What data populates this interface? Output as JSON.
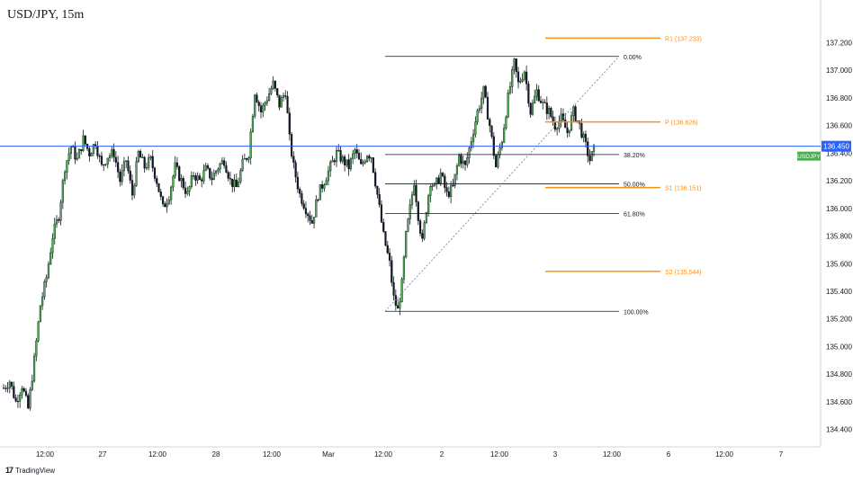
{
  "chart_data": {
    "type": "candlestick",
    "title": "USD/JPY, 15m",
    "brand": "TradingView",
    "brand_mark": "17",
    "symbol_tag": "USDJPY",
    "current_price_label": "136.450",
    "current_price": 136.45,
    "ylim": [
      134.3,
      137.45
    ],
    "y_ticks": [
      "134.400",
      "134.600",
      "134.800",
      "135.000",
      "135.200",
      "135.400",
      "135.600",
      "135.800",
      "136.000",
      "136.200",
      "136.400",
      "136.600",
      "136.800",
      "137.000",
      "137.200"
    ],
    "x_ticks": [
      "12:00",
      "27",
      "12:00",
      "28",
      "12:00",
      "Mar",
      "12:00",
      "2",
      "12:00",
      "3",
      "12:00",
      "6",
      "12:00",
      "7"
    ],
    "colors": {
      "up": "#4caf50",
      "down": "#131722",
      "wick": "#131722",
      "fib": "#131722",
      "pivot": "#f7931a",
      "price_line": "#2962ff",
      "price_label_bg": "#2962ff",
      "symbol_tag_bg": "#4caf50",
      "axis_text": "#131722",
      "pivot_text": "#f7931a"
    },
    "fib_levels": [
      {
        "label": "0.00%",
        "price": 137.1
      },
      {
        "label": "38.20%",
        "price": 136.39
      },
      {
        "label": "50.00%",
        "price": 136.178
      },
      {
        "label": "61.80%",
        "price": 135.962
      },
      {
        "label": "100.00%",
        "price": 135.255
      }
    ],
    "pivot_levels": [
      {
        "label": "R1 (137.233)",
        "price": 137.233
      },
      {
        "label": "P (136.626)",
        "price": 136.626
      },
      {
        "label": "S1 (136.151)",
        "price": 136.151
      },
      {
        "label": "S2 (135.544)",
        "price": 135.544
      }
    ],
    "trendline": {
      "from_price": 135.255,
      "to_price": 137.1
    },
    "close_path": [
      [
        0,
        134.7
      ],
      [
        3,
        134.75
      ],
      [
        6,
        134.6
      ],
      [
        9,
        134.72
      ],
      [
        12,
        134.55
      ],
      [
        15,
        134.9
      ],
      [
        18,
        135.3
      ],
      [
        21,
        135.5
      ],
      [
        24,
        135.8
      ],
      [
        27,
        135.95
      ],
      [
        30,
        136.3
      ],
      [
        33,
        136.45
      ],
      [
        36,
        136.35
      ],
      [
        39,
        136.5
      ],
      [
        42,
        136.4
      ],
      [
        45,
        136.48
      ],
      [
        48,
        136.3
      ],
      [
        51,
        136.38
      ],
      [
        54,
        136.4
      ],
      [
        57,
        136.2
      ],
      [
        60,
        136.35
      ],
      [
        63,
        136.1
      ],
      [
        66,
        136.4
      ],
      [
        69,
        136.3
      ],
      [
        72,
        136.35
      ],
      [
        75,
        136.2
      ],
      [
        78,
        136.0
      ],
      [
        81,
        136.1
      ],
      [
        84,
        136.3
      ],
      [
        87,
        136.2
      ],
      [
        90,
        136.1
      ],
      [
        93,
        136.25
      ],
      [
        96,
        136.2
      ],
      [
        99,
        136.28
      ],
      [
        102,
        136.22
      ],
      [
        105,
        136.3
      ],
      [
        108,
        136.35
      ],
      [
        111,
        136.2
      ],
      [
        114,
        136.15
      ],
      [
        117,
        136.32
      ],
      [
        120,
        136.4
      ],
      [
        123,
        136.85
      ],
      [
        126,
        136.7
      ],
      [
        129,
        136.8
      ],
      [
        132,
        136.9
      ],
      [
        135,
        136.75
      ],
      [
        138,
        136.85
      ],
      [
        140,
        136.5
      ],
      [
        142,
        136.3
      ],
      [
        145,
        136.1
      ],
      [
        148,
        136.0
      ],
      [
        151,
        135.9
      ],
      [
        154,
        136.1
      ],
      [
        157,
        136.2
      ],
      [
        160,
        136.3
      ],
      [
        163,
        136.4
      ],
      [
        166,
        136.35
      ],
      [
        169,
        136.3
      ],
      [
        172,
        136.42
      ],
      [
        175,
        136.3
      ],
      [
        178,
        136.4
      ],
      [
        180,
        136.38
      ],
      [
        183,
        136.1
      ],
      [
        186,
        135.8
      ],
      [
        189,
        135.6
      ],
      [
        191,
        135.35
      ],
      [
        193,
        135.26
      ],
      [
        195,
        135.45
      ],
      [
        197,
        135.8
      ],
      [
        199,
        136.0
      ],
      [
        201,
        136.2
      ],
      [
        203,
        135.95
      ],
      [
        205,
        135.75
      ],
      [
        207,
        136.0
      ],
      [
        209,
        136.2
      ],
      [
        211,
        136.15
      ],
      [
        214,
        136.25
      ],
      [
        217,
        136.1
      ],
      [
        220,
        136.15
      ],
      [
        223,
        136.38
      ],
      [
        226,
        136.3
      ],
      [
        229,
        136.5
      ],
      [
        232,
        136.7
      ],
      [
        235,
        136.85
      ],
      [
        238,
        136.6
      ],
      [
        241,
        136.3
      ],
      [
        244,
        136.5
      ],
      [
        247,
        136.8
      ],
      [
        250,
        137.05
      ],
      [
        252,
        136.9
      ],
      [
        255,
        137.0
      ],
      [
        258,
        136.7
      ],
      [
        261,
        136.85
      ],
      [
        264,
        136.75
      ],
      [
        267,
        136.7
      ],
      [
        270,
        136.6
      ],
      [
        273,
        136.65
      ],
      [
        276,
        136.55
      ],
      [
        279,
        136.7
      ],
      [
        282,
        136.6
      ],
      [
        285,
        136.45
      ],
      [
        287,
        136.35
      ],
      [
        289,
        136.42
      ]
    ]
  }
}
